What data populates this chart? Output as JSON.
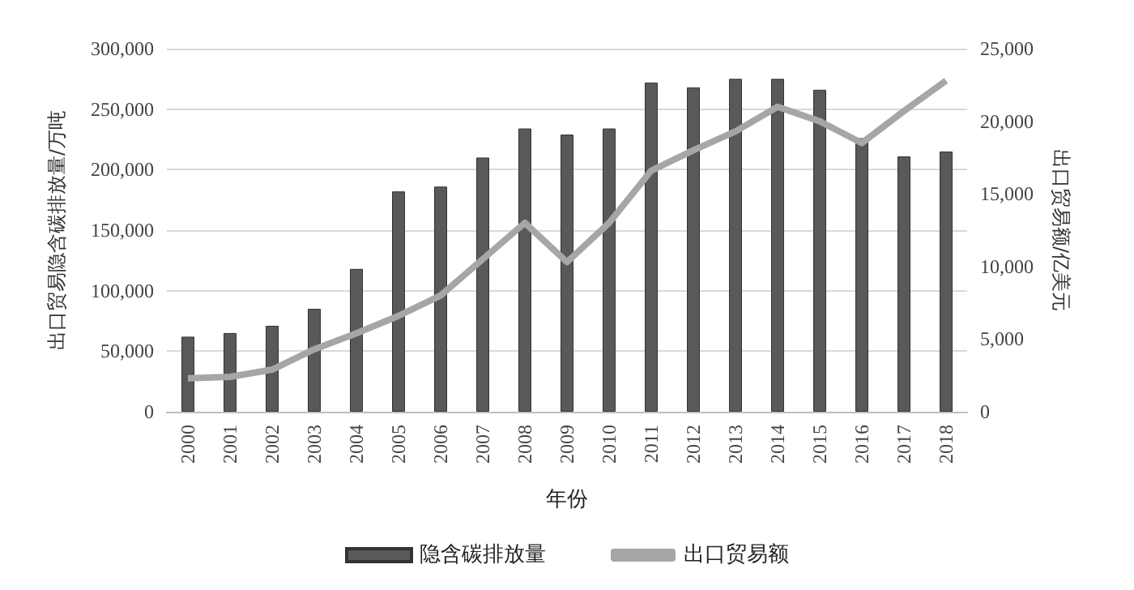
{
  "chart_data": {
    "type": "bar",
    "xlabel": "年份",
    "ylabel": "出口贸易隐含碳排放量/万吨",
    "y2label": "出口贸易额/亿美元",
    "categories": [
      "2000",
      "2001",
      "2002",
      "2003",
      "2004",
      "2005",
      "2006",
      "2007",
      "2008",
      "2009",
      "2010",
      "2011",
      "2012",
      "2013",
      "2014",
      "2015",
      "2016",
      "2017",
      "2018"
    ],
    "series": [
      {
        "name": "隐含碳排放量",
        "color": "#595959",
        "values": [
          62000,
          65000,
          71000,
          85000,
          118000,
          182000,
          186000,
          210000,
          234000,
          229000,
          234000,
          272000,
          268000,
          275000,
          275000,
          266000,
          226000,
          211000,
          215000
        ]
      },
      {
        "name": "出口贸易额",
        "type": "line",
        "axis": "y2",
        "color": "#a6a6a6",
        "values": [
          2300,
          2400,
          2900,
          4300,
          5400,
          6600,
          8000,
          10500,
          13000,
          10300,
          13000,
          16600,
          18000,
          19300,
          21000,
          20000,
          18500,
          20700,
          22800
        ]
      }
    ],
    "ylim": [
      0,
      300000
    ],
    "yticks": [
      0,
      {
        "value": 50000,
        "label": "50,000"
      },
      {
        "value": 100000,
        "label": "100,000"
      },
      {
        "value": 150000,
        "label": "150,000"
      },
      {
        "value": 200000,
        "label": "200,000"
      },
      {
        "value": 250000,
        "label": "250,000"
      },
      {
        "value": 300000,
        "label": "300,000"
      }
    ],
    "y2lim": [
      0,
      25000
    ],
    "y2ticks": [
      0,
      {
        "value": 5000,
        "label": "5,000"
      },
      {
        "value": 10000,
        "label": "10,000"
      },
      {
        "value": 15000,
        "label": "15,000"
      },
      {
        "value": 20000,
        "label": "20,000"
      },
      {
        "value": 25000,
        "label": "25,000"
      }
    ],
    "grid": "y",
    "legend": "bottom",
    "marker": "none"
  }
}
